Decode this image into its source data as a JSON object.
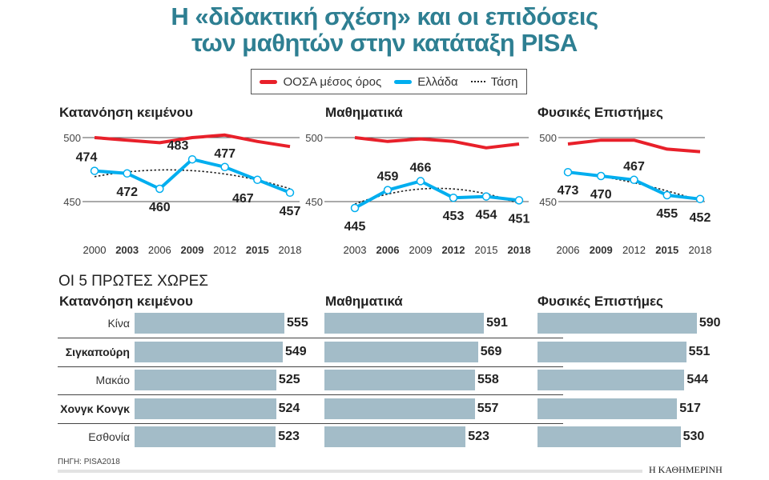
{
  "title": {
    "line1": "Η «διδακτική σχέση» και οι επιδόσεις",
    "line2": "των μαθητών στην κατάταξη PISA"
  },
  "legend": {
    "oecd": "ΟΟΣΑ μέσος όρος",
    "greece": "Ελλάδα",
    "trend": "Τάση"
  },
  "colors": {
    "title": "#2e7f92",
    "oecd": "#e8202a",
    "greece": "#00aeef",
    "trend": "#222222",
    "bars": "#a3bcc8"
  },
  "chart_data": [
    {
      "type": "line",
      "title": "Κατανόηση κειμένου",
      "x": [
        "2000",
        "2003",
        "2006",
        "2009",
        "2012",
        "2015",
        "2018"
      ],
      "yticks": [
        500,
        450
      ],
      "series": [
        {
          "name": "ΟΟΣΑ μέσος όρος",
          "values": [
            500,
            498,
            496,
            500,
            502,
            497,
            493
          ]
        },
        {
          "name": "Ελλάδα",
          "values": [
            474,
            472,
            460,
            483,
            477,
            467,
            457
          ]
        },
        {
          "name": "Τάση",
          "type": "quadratic-trend-of-Ελλάδα"
        }
      ]
    },
    {
      "type": "line",
      "title": "Μαθηματικά",
      "x": [
        "2003",
        "2006",
        "2009",
        "2012",
        "2015",
        "2018"
      ],
      "yticks": [
        500,
        450
      ],
      "series": [
        {
          "name": "ΟΟΣΑ μέσος όρος",
          "values": [
            500,
            497,
            499,
            497,
            492,
            495
          ]
        },
        {
          "name": "Ελλάδα",
          "values": [
            445,
            459,
            466,
            453,
            454,
            451
          ]
        },
        {
          "name": "Τάση",
          "type": "quadratic-trend-of-Ελλάδα"
        }
      ]
    },
    {
      "type": "line",
      "title": "Φυσικές Επιστήμες",
      "x": [
        "2006",
        "2009",
        "2012",
        "2015",
        "2018"
      ],
      "yticks": [
        500,
        450
      ],
      "series": [
        {
          "name": "ΟΟΣΑ μέσος όρος",
          "values": [
            495,
            498,
            498,
            491,
            489
          ]
        },
        {
          "name": "Ελλάδα",
          "values": [
            473,
            470,
            467,
            455,
            452
          ]
        },
        {
          "name": "Τάση",
          "type": "quadratic-trend-of-Ελλάδα"
        }
      ]
    },
    {
      "type": "bar",
      "title": "Κατανόηση κειμένου",
      "categories": [
        "Κίνα",
        "Σιγκαπούρη",
        "Μακάο",
        "Χονγκ Κονγκ",
        "Εσθονία"
      ],
      "values": [
        555,
        549,
        525,
        524,
        523
      ]
    },
    {
      "type": "bar",
      "title": "Μαθηματικά",
      "categories": [
        "Κίνα",
        "Σιγκαπούρη",
        "Μακάο",
        "Χονγκ Κονγκ",
        "Εσθονία"
      ],
      "values": [
        591,
        569,
        558,
        557,
        523
      ]
    },
    {
      "type": "bar",
      "title": "Φυσικές Επιστήμες",
      "categories": [
        "Κίνα",
        "Σιγκαπούρη",
        "Μακάο",
        "Χονγκ Κονγκ",
        "Εσθονία"
      ],
      "values": [
        590,
        551,
        544,
        517,
        530
      ]
    }
  ],
  "section_title": "ΟΙ 5 ΠΡΩΤΕΣ ΧΩΡΕΣ",
  "source": "ΠΗΓΗ: PISA2018",
  "brand": "Η ΚΑΘΗΜΕΡΙΝΗ"
}
